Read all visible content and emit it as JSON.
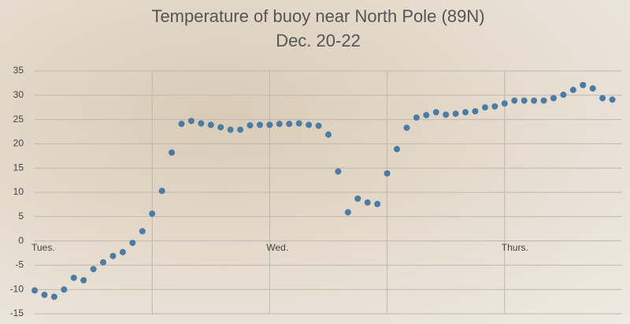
{
  "chart_data": {
    "type": "scatter",
    "title": "Temperature of buoy near North Pole (89N)",
    "subtitle": "Dec. 20-22",
    "series": [
      {
        "color": "#4a7ca5",
        "x": [
          0,
          1,
          2,
          3,
          4,
          5,
          6,
          7,
          8,
          9,
          10,
          11,
          12,
          13,
          14,
          15,
          16,
          17,
          18,
          19,
          20,
          21,
          22,
          23,
          24,
          25,
          26,
          27,
          28,
          29,
          30,
          31,
          32,
          33,
          34,
          35,
          36,
          37,
          38,
          39,
          40,
          41,
          42,
          43,
          44,
          45,
          46,
          47,
          48,
          49,
          50,
          51,
          52,
          53,
          54,
          55,
          56,
          57,
          58,
          59
        ],
        "values": [
          -10.2,
          -11.1,
          -11.5,
          -10,
          -7.6,
          -8.1,
          -5.8,
          -4.4,
          -3.1,
          -2.3,
          -0.4,
          2.0,
          5.6,
          10.3,
          18.2,
          24.1,
          24.7,
          24.2,
          23.9,
          23.4,
          22.9,
          22.9,
          23.8,
          23.9,
          23.9,
          24.1,
          24.1,
          24.2,
          23.9,
          23.7,
          21.9,
          14.3,
          5.9,
          8.7,
          7.9,
          7.6,
          13.9,
          18.9,
          23.3,
          25.4,
          25.9,
          26.5,
          26,
          26.2,
          26.5,
          26.7,
          27.5,
          27.7,
          28.3,
          28.9,
          28.9,
          28.9,
          28.9,
          29.4,
          30.1,
          31.1,
          32.1,
          31.4,
          29.4,
          29.1
        ]
      }
    ],
    "xlim": [
      0,
      60
    ],
    "xticks": [
      {
        "value": 0,
        "label": "Tues."
      },
      {
        "value": 24,
        "label": "Wed."
      },
      {
        "value": 48,
        "label": "Thurs."
      }
    ],
    "xgrid": [
      12,
      24,
      36,
      48
    ],
    "ylim": [
      -15,
      35
    ],
    "yticks": [
      -15,
      -10,
      -5,
      0,
      5,
      10,
      15,
      20,
      25,
      30,
      35
    ],
    "grid": true
  }
}
